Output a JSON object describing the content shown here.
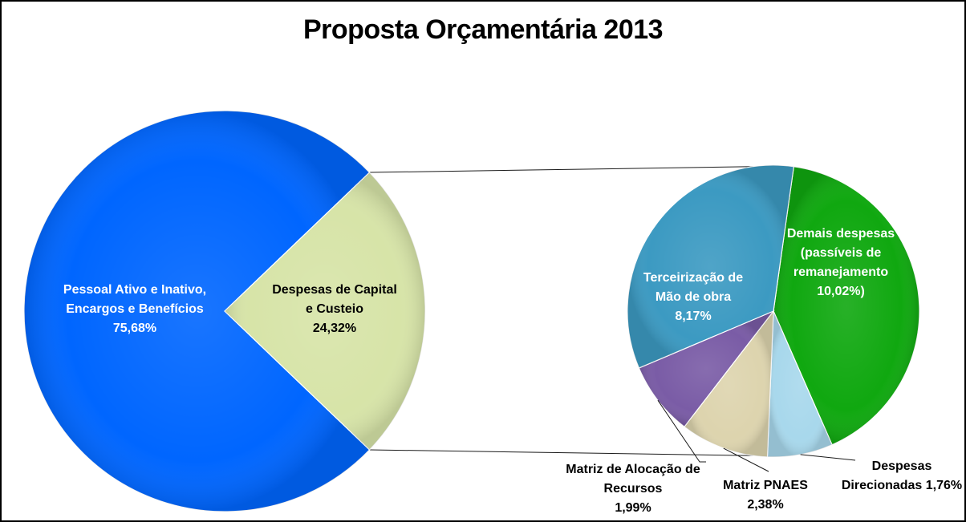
{
  "chart_data": [
    {
      "type": "pie",
      "title": "Proposta Orçamentária 2013",
      "slices": [
        {
          "label_lines": [
            "Pessoal Ativo e Inativo,",
            "Encargos e Benefícios",
            "75,68%"
          ],
          "value": 75.68,
          "color": "#0066FF",
          "label_color": "#FFFFFF"
        },
        {
          "label_lines": [
            "Despesas de Capital",
            "e Custeio",
            "24,32%"
          ],
          "value": 24.32,
          "color": "#D7E4A8",
          "label_color": "#000000"
        }
      ]
    },
    {
      "type": "pie",
      "title": "",
      "slices": [
        {
          "label_lines": [
            "Demais despesas",
            "(passíveis de",
            "remanejamento",
            "10,02%)"
          ],
          "value": 10.02,
          "color": "#10A810",
          "label_color": "#FFFFFF"
        },
        {
          "label_lines": [
            "Despesas",
            "Direcionadas 1,76%"
          ],
          "value": 1.76,
          "color": "#A8D8EC",
          "label_color": "#000000"
        },
        {
          "label_lines": [
            "Matriz PNAES",
            "2,38%"
          ],
          "value": 2.38,
          "color": "#DDD4AE",
          "label_color": "#000000"
        },
        {
          "label_lines": [
            "Matriz de Alocação de",
            "Recursos",
            "1,99%"
          ],
          "value": 1.99,
          "color": "#7A5CA6",
          "label_color": "#000000"
        },
        {
          "label_lines": [
            "Terceirização de",
            "Mão de obra",
            "8,17%"
          ],
          "value": 8.17,
          "color": "#3C9AC2",
          "label_color": "#FFFFFF"
        }
      ]
    }
  ]
}
